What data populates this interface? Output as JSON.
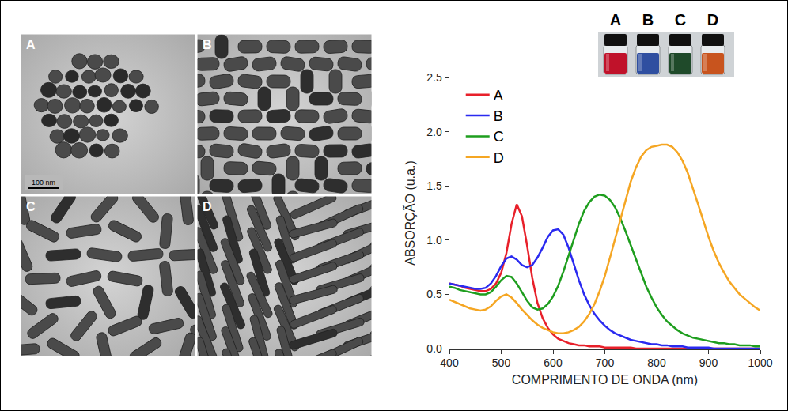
{
  "tem_images": {
    "labels": [
      "A",
      "B",
      "C",
      "D"
    ],
    "scale_bar": "100 nm"
  },
  "vials": {
    "labels": [
      "A",
      "B",
      "C",
      "D"
    ],
    "colors": [
      "#c0122a",
      "#2f4fa0",
      "#1f4a2a",
      "#c8541e"
    ]
  },
  "chart_data": {
    "type": "line",
    "xlabel": "COMPRIMENTO DE ONDA (nm)",
    "ylabel": "ABSORÇÃO (u.a.)",
    "x": [
      400,
      410,
      420,
      430,
      440,
      450,
      460,
      470,
      480,
      490,
      500,
      510,
      520,
      530,
      540,
      550,
      560,
      570,
      580,
      590,
      600,
      610,
      620,
      630,
      640,
      650,
      660,
      670,
      680,
      690,
      700,
      710,
      720,
      730,
      740,
      750,
      760,
      770,
      780,
      790,
      800,
      810,
      820,
      830,
      840,
      850,
      860,
      870,
      880,
      890,
      900,
      910,
      920,
      930,
      940,
      950,
      960,
      970,
      980,
      990,
      1000
    ],
    "series": [
      {
        "name": "A",
        "color": "#e8202a",
        "values": [
          0.6,
          0.59,
          0.58,
          0.56,
          0.55,
          0.54,
          0.53,
          0.53,
          0.55,
          0.6,
          0.7,
          0.88,
          1.15,
          1.33,
          1.22,
          0.95,
          0.65,
          0.42,
          0.28,
          0.19,
          0.13,
          0.09,
          0.07,
          0.05,
          0.04,
          0.03,
          0.03,
          0.02,
          0.02,
          0.02,
          0.01,
          0.01,
          0.01,
          0.01,
          0.01,
          0.01,
          0,
          0,
          0,
          0,
          0,
          0,
          0,
          0,
          0,
          0,
          0,
          0,
          0,
          0,
          0,
          0,
          0,
          0,
          0,
          0,
          0,
          0,
          0,
          0,
          0
        ]
      },
      {
        "name": "B",
        "color": "#2a2af0",
        "values": [
          0.6,
          0.59,
          0.58,
          0.57,
          0.56,
          0.55,
          0.55,
          0.56,
          0.6,
          0.67,
          0.76,
          0.83,
          0.85,
          0.82,
          0.77,
          0.75,
          0.77,
          0.84,
          0.93,
          1.03,
          1.09,
          1.1,
          1.05,
          0.93,
          0.78,
          0.63,
          0.5,
          0.4,
          0.32,
          0.26,
          0.21,
          0.17,
          0.14,
          0.12,
          0.1,
          0.08,
          0.07,
          0.06,
          0.05,
          0.04,
          0.04,
          0.03,
          0.03,
          0.02,
          0.02,
          0.02,
          0.01,
          0.01,
          0.01,
          0.01,
          0.01,
          0,
          0,
          0,
          0,
          0,
          0,
          0,
          0,
          0,
          0
        ]
      },
      {
        "name": "C",
        "color": "#1e9e1e",
        "values": [
          0.57,
          0.56,
          0.54,
          0.53,
          0.52,
          0.51,
          0.5,
          0.5,
          0.52,
          0.57,
          0.63,
          0.67,
          0.66,
          0.6,
          0.52,
          0.44,
          0.38,
          0.36,
          0.37,
          0.41,
          0.48,
          0.58,
          0.71,
          0.86,
          1.01,
          1.15,
          1.27,
          1.35,
          1.4,
          1.42,
          1.41,
          1.37,
          1.3,
          1.2,
          1.08,
          0.95,
          0.82,
          0.69,
          0.57,
          0.47,
          0.38,
          0.31,
          0.25,
          0.21,
          0.17,
          0.14,
          0.12,
          0.1,
          0.09,
          0.08,
          0.07,
          0.06,
          0.05,
          0.05,
          0.04,
          0.04,
          0.03,
          0.03,
          0.03,
          0.02,
          0.02
        ]
      },
      {
        "name": "D",
        "color": "#f5a623",
        "values": [
          0.45,
          0.43,
          0.41,
          0.39,
          0.37,
          0.36,
          0.35,
          0.36,
          0.39,
          0.44,
          0.48,
          0.5,
          0.47,
          0.42,
          0.36,
          0.31,
          0.26,
          0.22,
          0.19,
          0.17,
          0.15,
          0.14,
          0.14,
          0.15,
          0.17,
          0.2,
          0.25,
          0.32,
          0.41,
          0.53,
          0.67,
          0.84,
          1.02,
          1.2,
          1.38,
          1.54,
          1.67,
          1.77,
          1.83,
          1.86,
          1.87,
          1.88,
          1.88,
          1.86,
          1.81,
          1.73,
          1.62,
          1.48,
          1.33,
          1.18,
          1.03,
          0.9,
          0.79,
          0.7,
          0.62,
          0.56,
          0.5,
          0.46,
          0.42,
          0.38,
          0.35
        ]
      }
    ],
    "xlim": [
      400,
      1000
    ],
    "xticks": [
      400,
      500,
      600,
      700,
      800,
      900,
      1000
    ],
    "ylim": [
      0,
      2.5
    ],
    "yticks": [
      {
        "value": 0,
        "label": "0.0"
      },
      0.5,
      {
        "value": 1,
        "label": "1.0"
      },
      1.5,
      {
        "value": 2,
        "label": "2.0"
      },
      2.5
    ],
    "grid": false,
    "legend": "upper left"
  }
}
